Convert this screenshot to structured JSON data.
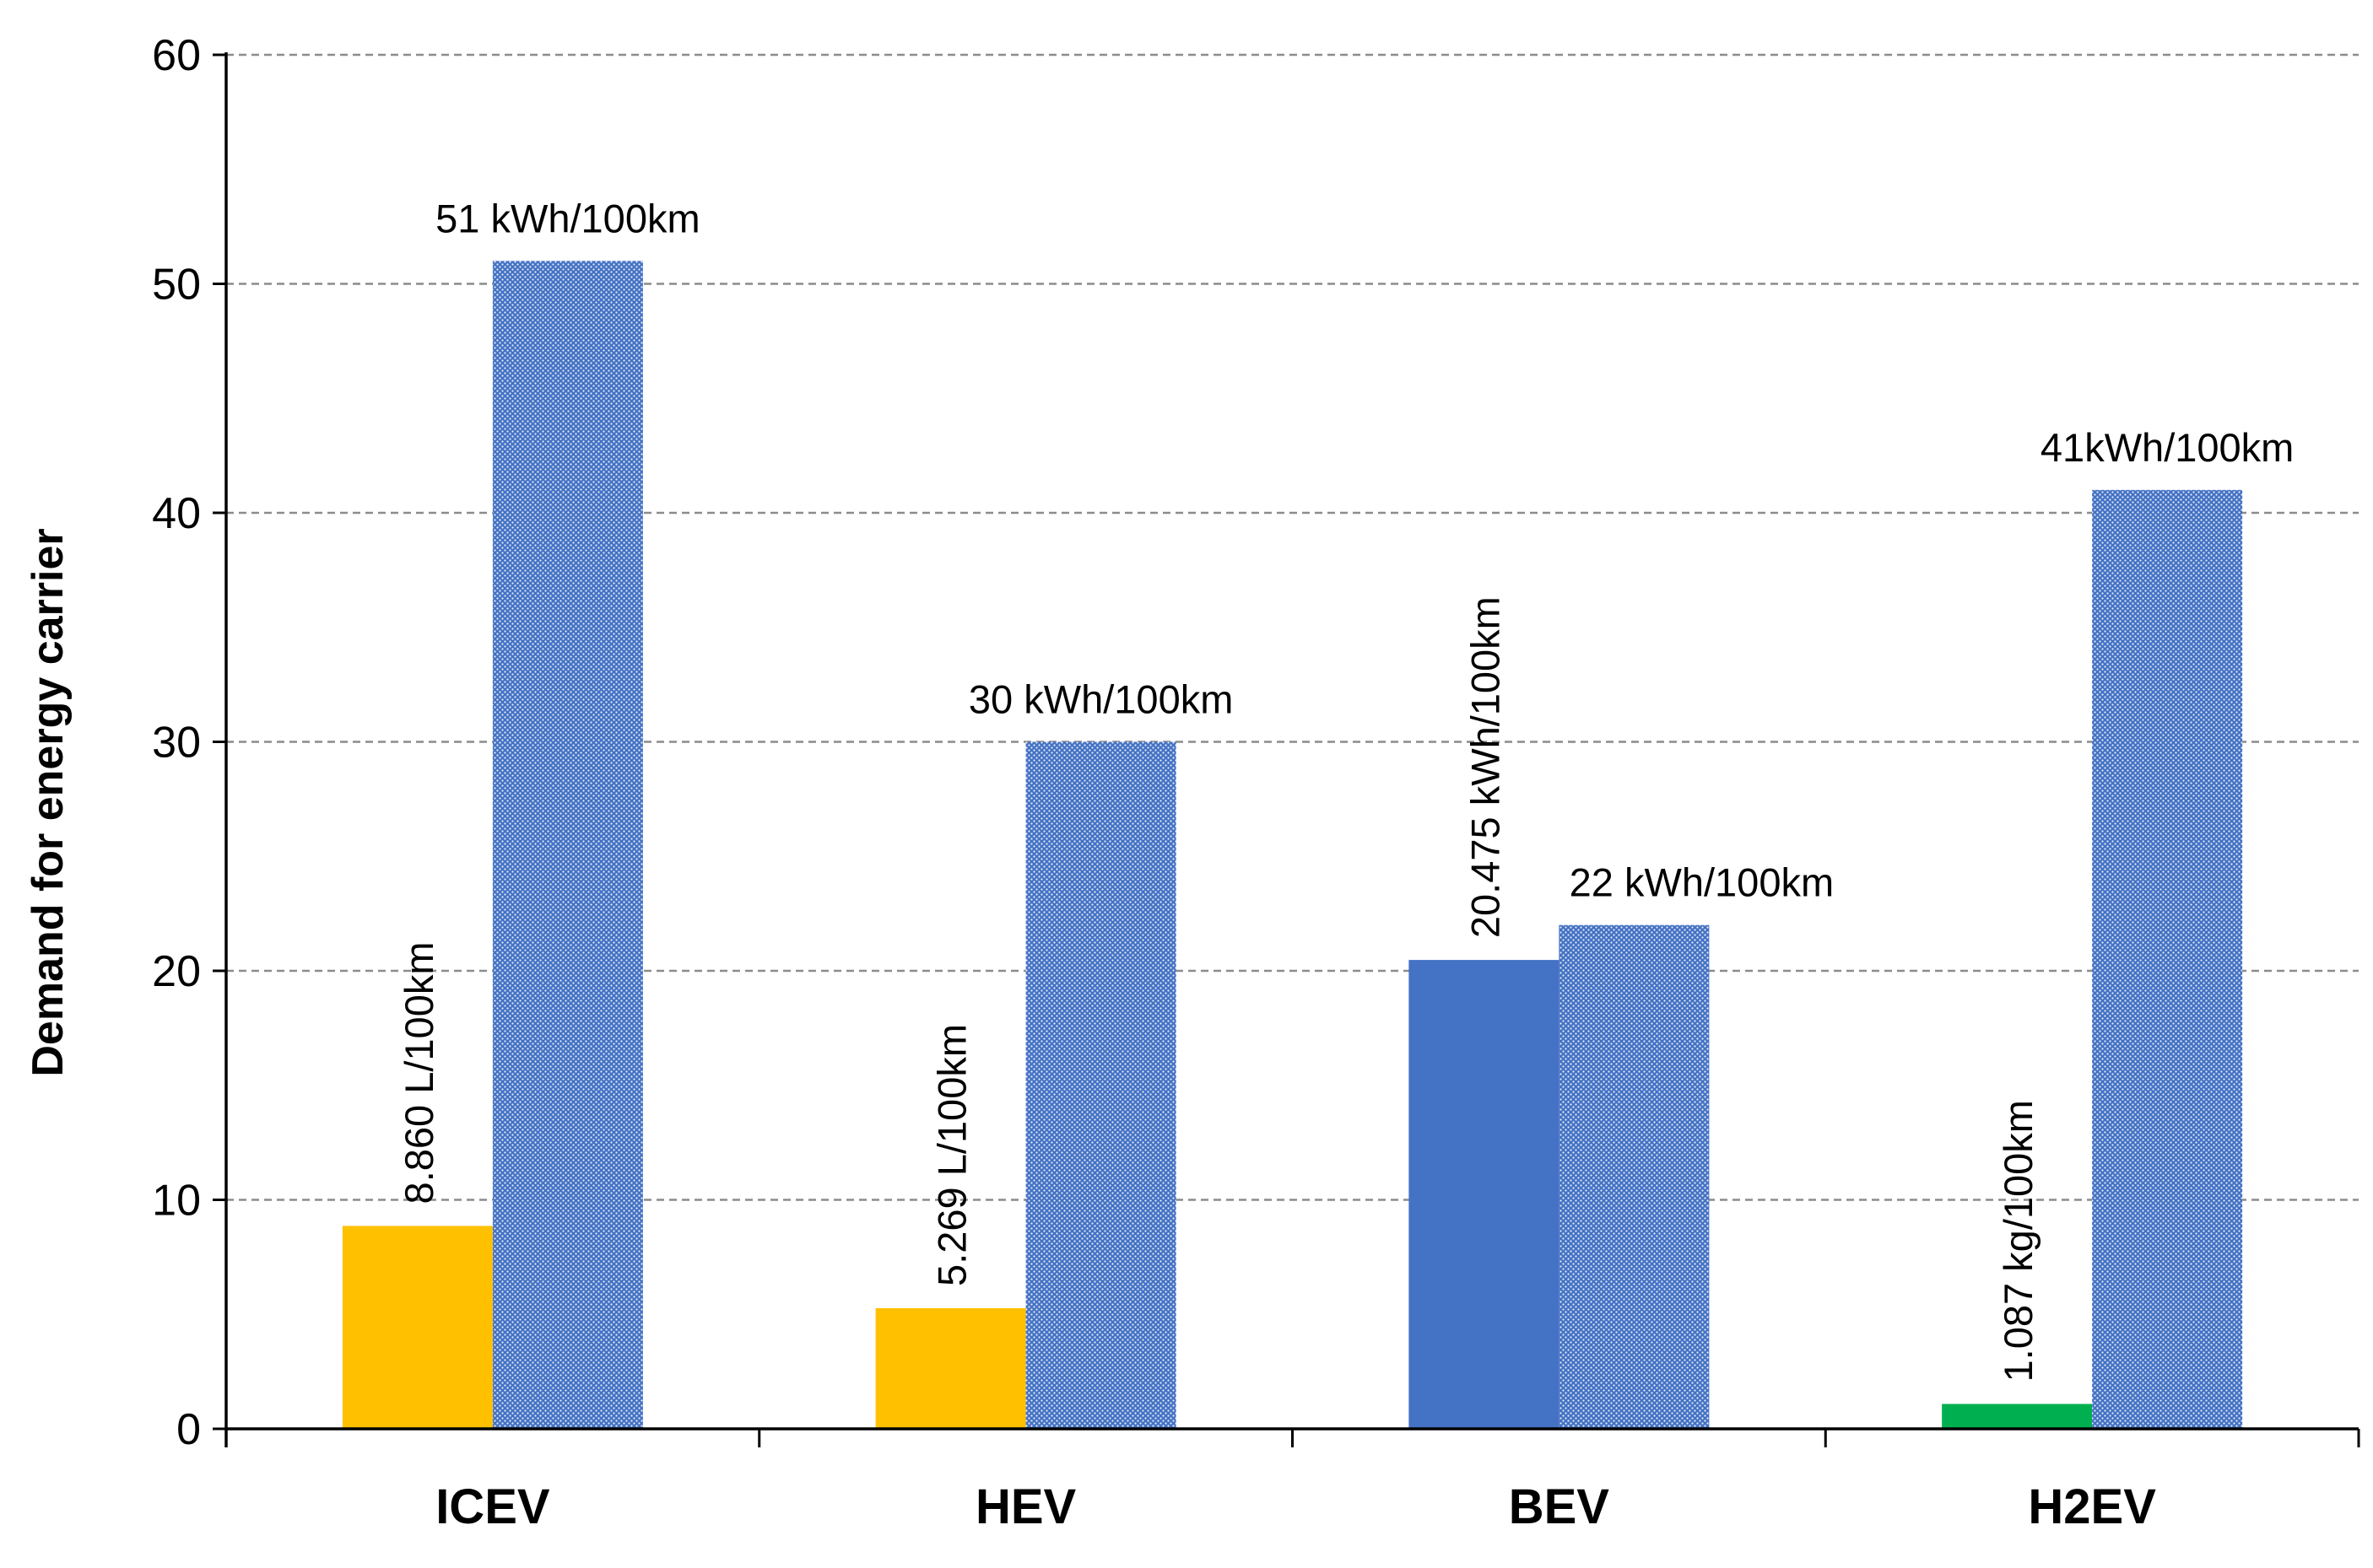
{
  "chart_data": {
    "type": "bar",
    "title": "",
    "xlabel": "",
    "ylabel": "Demand for energy carrier",
    "ylim": [
      0,
      60
    ],
    "yticks": [
      0,
      10,
      20,
      30,
      40,
      50,
      60
    ],
    "grid": true,
    "legend": "none",
    "categories": [
      "ICEV",
      "HEV",
      "BEV",
      "H2EV"
    ],
    "series": [
      {
        "name": "energy carrier",
        "values": [
          8.86,
          5.269,
          20.475,
          1.087
        ],
        "colors": [
          "#FFC000",
          "#FFC000",
          "#4472C4",
          "#00B050"
        ],
        "labels": [
          "8.860 L/100km",
          "5.269 L/100km",
          "20.475 kWh/100km",
          "1.087 kg/100km"
        ],
        "label_orientation": "vertical"
      },
      {
        "name": "energy",
        "values": [
          51,
          30,
          22,
          41
        ],
        "pattern": "dotted-blue",
        "colors": [
          "#4472C4"
        ],
        "labels": [
          "51 kWh/100km",
          "30 kWh/100km",
          "22 kWh/100km",
          "41kWh/100km"
        ],
        "label_orientation": "horizontal"
      }
    ]
  }
}
